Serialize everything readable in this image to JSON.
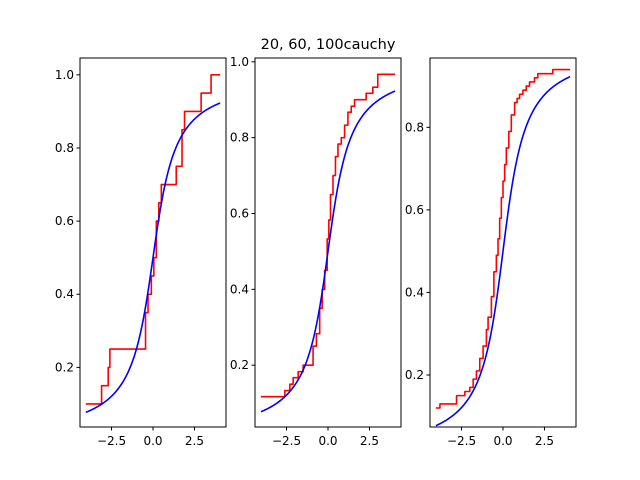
{
  "figure": {
    "title": "20, 60, 100cauchy"
  },
  "chart_data": [
    {
      "type": "line",
      "title": "",
      "xlabel": "",
      "ylabel": "",
      "xlim": [
        -4.4,
        4.4
      ],
      "ylim": [
        0.037,
        1.046
      ],
      "xticks": [
        -2.5,
        0.0,
        2.5
      ],
      "xtick_labels": [
        "−2.5",
        "0.0",
        "2.5"
      ],
      "yticks": [
        0.2,
        0.4,
        0.6,
        0.8,
        1.0
      ],
      "ytick_labels": [
        "0.2",
        "0.4",
        "0.6",
        "0.8",
        "1.0"
      ],
      "grid": false,
      "series": [
        {
          "color": "#ff0000",
          "drawstyle": "steps",
          "x": [
            -4.0,
            -3.3,
            -3.1,
            -2.9,
            -2.7,
            -2.6,
            -2.5,
            -0.5,
            -0.45,
            -0.3,
            -0.1,
            0.05,
            0.2,
            0.35,
            0.5,
            1.3,
            1.4,
            1.75,
            1.9,
            2.5,
            2.9,
            3.5,
            4.0
          ],
          "y": [
            0.1,
            0.1,
            0.15,
            0.15,
            0.2,
            0.25,
            0.25,
            0.25,
            0.35,
            0.4,
            0.45,
            0.5,
            0.6,
            0.65,
            0.7,
            0.7,
            0.75,
            0.85,
            0.9,
            0.9,
            0.95,
            1.0,
            1.0
          ]
        },
        {
          "color": "#0000ff",
          "function": "cauchy_cdf",
          "x_range": [
            -4.0,
            4.0
          ]
        }
      ]
    },
    {
      "type": "line",
      "title": "",
      "xlabel": "",
      "ylabel": "",
      "xlim": [
        -4.4,
        4.4
      ],
      "ylim": [
        0.037,
        1.01
      ],
      "xticks": [
        -2.5,
        0.0,
        2.5
      ],
      "xtick_labels": [
        "−2.5",
        "0.0",
        "2.5"
      ],
      "yticks": [
        0.2,
        0.4,
        0.6,
        0.8,
        1.0
      ],
      "ytick_labels": [
        "0.2",
        "0.4",
        "0.6",
        "0.8",
        "1.0"
      ],
      "grid": false,
      "series": [
        {
          "color": "#ff0000",
          "drawstyle": "steps",
          "x": [
            -4.0,
            -3.0,
            -2.6,
            -2.3,
            -2.1,
            -1.8,
            -1.5,
            -1.2,
            -0.9,
            -0.7,
            -0.5,
            -0.35,
            -0.2,
            -0.05,
            0.05,
            0.15,
            0.3,
            0.45,
            0.6,
            0.8,
            1.0,
            1.2,
            1.4,
            1.6,
            1.9,
            2.3,
            2.7,
            3.0,
            3.5,
            4.0
          ],
          "y": [
            0.117,
            0.117,
            0.133,
            0.15,
            0.167,
            0.183,
            0.2,
            0.2,
            0.25,
            0.283,
            0.35,
            0.4,
            0.45,
            0.533,
            0.583,
            0.65,
            0.7,
            0.75,
            0.783,
            0.8,
            0.833,
            0.867,
            0.883,
            0.9,
            0.9,
            0.917,
            0.933,
            0.967,
            0.967,
            0.967
          ]
        },
        {
          "color": "#0000ff",
          "function": "cauchy_cdf",
          "x_range": [
            -4.0,
            4.0
          ]
        }
      ]
    },
    {
      "type": "line",
      "title": "",
      "xlabel": "",
      "ylabel": "",
      "xlim": [
        -4.4,
        4.4
      ],
      "ylim": [
        0.074,
        0.968
      ],
      "xticks": [
        -2.5,
        0.0,
        2.5
      ],
      "xtick_labels": [
        "−2.5",
        "0.0",
        "2.5"
      ],
      "yticks": [
        0.2,
        0.4,
        0.6,
        0.8
      ],
      "ytick_labels": [
        "0.2",
        "0.4",
        "0.6",
        "0.8"
      ],
      "grid": false,
      "series": [
        {
          "color": "#ff0000",
          "drawstyle": "steps",
          "x": [
            -4.0,
            -3.8,
            -3.0,
            -2.8,
            -2.3,
            -2.0,
            -1.8,
            -1.6,
            -1.4,
            -1.2,
            -1.0,
            -0.9,
            -0.7,
            -0.55,
            -0.4,
            -0.3,
            -0.2,
            -0.1,
            0.0,
            0.1,
            0.2,
            0.35,
            0.5,
            0.7,
            0.85,
            1.0,
            1.2,
            1.4,
            1.6,
            1.9,
            2.1,
            2.5,
            3.0,
            3.5,
            4.0
          ],
          "y": [
            0.12,
            0.13,
            0.13,
            0.15,
            0.16,
            0.17,
            0.19,
            0.21,
            0.24,
            0.27,
            0.31,
            0.34,
            0.39,
            0.45,
            0.49,
            0.53,
            0.58,
            0.63,
            0.67,
            0.71,
            0.75,
            0.79,
            0.83,
            0.86,
            0.87,
            0.88,
            0.89,
            0.9,
            0.91,
            0.92,
            0.93,
            0.93,
            0.94,
            0.94,
            0.94
          ]
        },
        {
          "color": "#0000ff",
          "function": "cauchy_cdf",
          "x_range": [
            -4.0,
            4.0
          ]
        }
      ]
    }
  ]
}
